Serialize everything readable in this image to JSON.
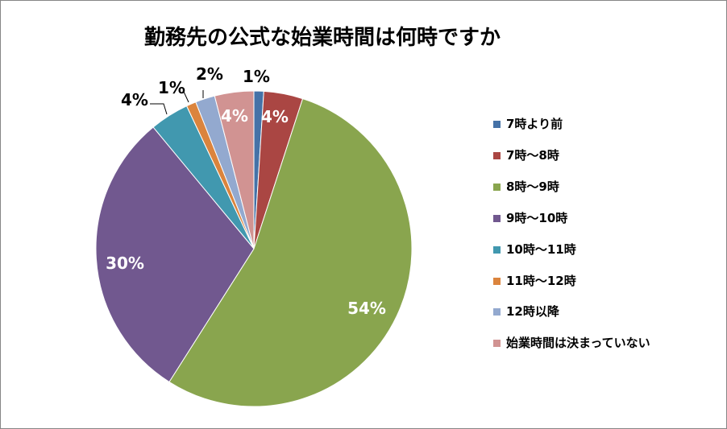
{
  "chart_data": {
    "type": "pie",
    "title": "勤務先の公式な始業時間は何時ですか",
    "categories": [
      "7時より前",
      "7時～8時",
      "8時～9時",
      "9時～10時",
      "10時～11時",
      "11時～12時",
      "12時以降",
      "始業時間は決まっていない"
    ],
    "values": [
      1,
      4,
      54,
      30,
      4,
      1,
      2,
      4
    ],
    "labels": [
      "1%",
      "4%",
      "54%",
      "30%",
      "4%",
      "1%",
      "2%",
      "4%"
    ],
    "colors": [
      "#4572A7",
      "#AA4643",
      "#89A54E",
      "#71588F",
      "#4198AF",
      "#DB843D",
      "#93A9CF",
      "#D19392"
    ],
    "legend_position": "right"
  }
}
